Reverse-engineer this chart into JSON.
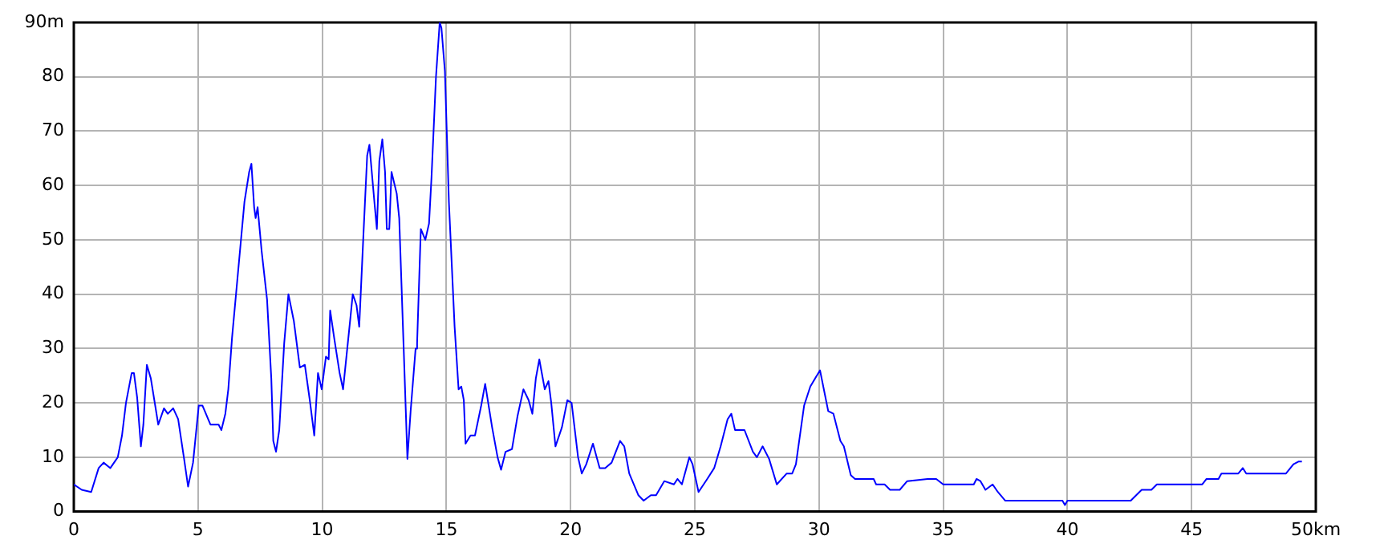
{
  "chart_data": {
    "type": "line",
    "marker": "none",
    "grid": true,
    "legend": false,
    "line_style": "solid",
    "xlim": [
      0,
      50
    ],
    "xticks": [
      0,
      5,
      10,
      15,
      20,
      25,
      30,
      35,
      40,
      45,
      {
        "value": 50,
        "label": "50km"
      }
    ],
    "ylim": [
      0,
      90
    ],
    "yticks": [
      0,
      10,
      20,
      30,
      40,
      50,
      60,
      70,
      80,
      {
        "value": 90,
        "label": "90m"
      }
    ],
    "x": [
      0,
      0.32,
      0.7,
      1.0,
      1.2,
      1.47,
      1.77,
      1.94,
      2.1,
      2.33,
      2.42,
      2.55,
      2.7,
      2.8,
      2.94,
      3.1,
      3.4,
      3.63,
      3.78,
      4.0,
      4.2,
      4.43,
      4.6,
      4.8,
      5.03,
      5.18,
      5.5,
      5.83,
      5.94,
      6.1,
      6.22,
      6.37,
      6.65,
      6.87,
      7.06,
      7.15,
      7.26,
      7.32,
      7.4,
      7.56,
      7.78,
      7.95,
      8.03,
      8.14,
      8.27,
      8.47,
      8.64,
      8.86,
      9.1,
      9.3,
      9.5,
      9.68,
      9.83,
      9.98,
      10.15,
      10.26,
      10.32,
      10.48,
      10.7,
      10.84,
      11.12,
      11.23,
      11.38,
      11.49,
      11.66,
      11.81,
      11.9,
      12.1,
      12.2,
      12.3,
      12.42,
      12.53,
      12.6,
      12.7,
      12.79,
      13.0,
      13.1,
      13.28,
      13.43,
      13.56,
      13.76,
      13.82,
      13.97,
      14.15,
      14.3,
      14.4,
      14.58,
      14.73,
      14.8,
      14.94,
      15.1,
      15.33,
      15.49,
      15.6,
      15.7,
      15.77,
      15.97,
      16.15,
      16.4,
      16.56,
      16.84,
      17.06,
      17.2,
      17.38,
      17.64,
      17.86,
      18.1,
      18.31,
      18.46,
      18.6,
      18.74,
      18.96,
      19.11,
      19.22,
      19.39,
      19.65,
      19.87,
      20.04,
      20.3,
      20.45,
      20.63,
      20.9,
      21.17,
      21.39,
      21.65,
      21.99,
      22.16,
      22.36,
      22.73,
      22.94,
      23.23,
      23.44,
      23.77,
      24.16,
      24.3,
      24.48,
      24.78,
      24.91,
      25.15,
      25.5,
      25.78,
      26.04,
      26.32,
      26.47,
      26.62,
      27.0,
      27.34,
      27.5,
      27.73,
      27.99,
      28.3,
      28.7,
      28.92,
      29.07,
      29.4,
      29.65,
      30.04,
      30.37,
      30.58,
      30.86,
      31.0,
      31.28,
      31.45,
      32.2,
      32.3,
      32.64,
      32.86,
      33.25,
      33.55,
      34.37,
      34.72,
      35.0,
      36.23,
      36.34,
      36.5,
      36.7,
      36.99,
      37.2,
      37.5,
      39.8,
      39.9,
      40.0,
      42.55,
      42.99,
      43.38,
      43.6,
      45.43,
      45.6,
      46.08,
      46.2,
      46.88,
      47.06,
      47.2,
      48.8,
      49.1,
      49.3,
      49.44
    ],
    "series": [
      {
        "color": "#0000ff",
        "values": [
          5,
          4,
          3.6,
          8,
          9,
          8,
          10,
          14,
          20,
          25.5,
          25.5,
          21,
          12,
          16,
          27,
          24.5,
          16,
          19,
          18,
          19,
          17,
          10,
          4.6,
          9,
          19.5,
          19.5,
          16,
          16,
          15,
          18,
          22.5,
          32,
          46,
          57,
          62.5,
          64,
          56,
          54,
          56,
          48,
          39,
          24.5,
          13,
          11,
          15,
          31,
          40,
          35,
          26.5,
          27,
          20.5,
          14,
          25.5,
          22.5,
          28.5,
          28,
          37,
          32,
          25.5,
          22.5,
          35,
          40,
          38,
          34,
          51,
          65.5,
          67.5,
          57,
          52,
          64.5,
          68.5,
          62.5,
          52,
          52,
          62.5,
          58.5,
          54,
          30,
          9.7,
          18.5,
          30,
          31,
          52,
          50,
          53,
          61.5,
          80,
          90,
          89,
          81,
          57,
          34,
          22.5,
          23,
          20.5,
          12.5,
          14,
          14,
          19.5,
          23.5,
          15.5,
          10,
          7.7,
          11,
          11.5,
          17.5,
          22.5,
          20.5,
          18,
          24.5,
          28,
          22.5,
          24,
          20,
          12,
          15.5,
          20.5,
          20,
          10,
          7,
          8.7,
          12.5,
          8,
          8,
          9,
          13,
          12,
          7,
          3,
          2,
          3,
          3,
          5.6,
          5,
          6,
          5,
          10,
          8.7,
          3.6,
          6,
          8,
          12,
          17,
          18,
          15,
          15,
          11,
          10,
          12,
          9.7,
          5,
          7,
          7,
          8.7,
          19.5,
          23,
          26,
          18.5,
          18,
          13,
          12,
          6.7,
          6,
          6,
          5,
          5,
          4,
          4,
          5.6,
          6,
          6,
          5,
          5,
          6,
          5.6,
          4,
          5,
          3.6,
          2,
          2,
          1.2,
          2,
          2,
          4,
          4,
          5,
          5,
          6,
          6,
          7,
          7,
          8,
          7,
          7,
          8.7,
          9.2,
          9.2
        ]
      }
    ]
  }
}
